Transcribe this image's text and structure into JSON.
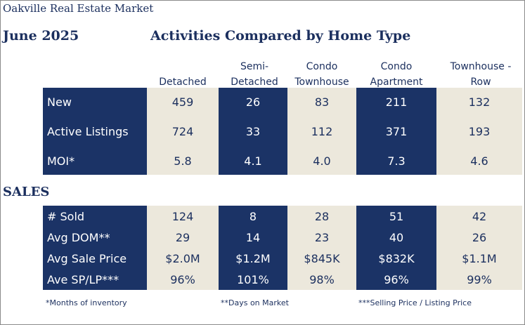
{
  "header": {
    "site_title": "Oakville Real Estate Market",
    "period": "June 2025",
    "main_title": "Activities Compared by Home Type"
  },
  "columns": [
    {
      "line1": "Detached",
      "line2": ""
    },
    {
      "line1": "Semi-",
      "line2": "Detached"
    },
    {
      "line1": "Condo",
      "line2": "Townhouse"
    },
    {
      "line1": "Condo",
      "line2": "Apartment"
    },
    {
      "line1": "Townhouse -",
      "line2": "Row"
    }
  ],
  "activity_rows": [
    {
      "label": "New",
      "values": [
        "459",
        "26",
        "83",
        "211",
        "132"
      ]
    },
    {
      "label": "Active Listings",
      "values": [
        "724",
        "33",
        "112",
        "371",
        "193"
      ]
    },
    {
      "label": "MOI*",
      "values": [
        "5.8",
        "4.1",
        "4.0",
        "7.3",
        "4.6"
      ]
    }
  ],
  "sales": {
    "heading": "SALES",
    "rows": [
      {
        "label": "# Sold",
        "values": [
          "124",
          "8",
          "28",
          "51",
          "42"
        ]
      },
      {
        "label": "Avg DOM**",
        "values": [
          "29",
          "14",
          "23",
          "40",
          "26"
        ]
      },
      {
        "label": "Avg Sale Price",
        "values": [
          "$2.0M",
          "$1.2M",
          "$845K",
          "$832K",
          "$1.1M"
        ]
      },
      {
        "label": "Ave SP/LP***",
        "values": [
          "96%",
          "101%",
          "98%",
          "96%",
          "99%"
        ]
      }
    ]
  },
  "footnotes": {
    "moi": "*Months of inventory",
    "dom": "**Days on Market",
    "splp": "***Selling Price / Listing Price"
  },
  "colors": {
    "navy": "#1b3366",
    "beige": "#ece8dc",
    "text_navy": "#1b2f5e"
  }
}
